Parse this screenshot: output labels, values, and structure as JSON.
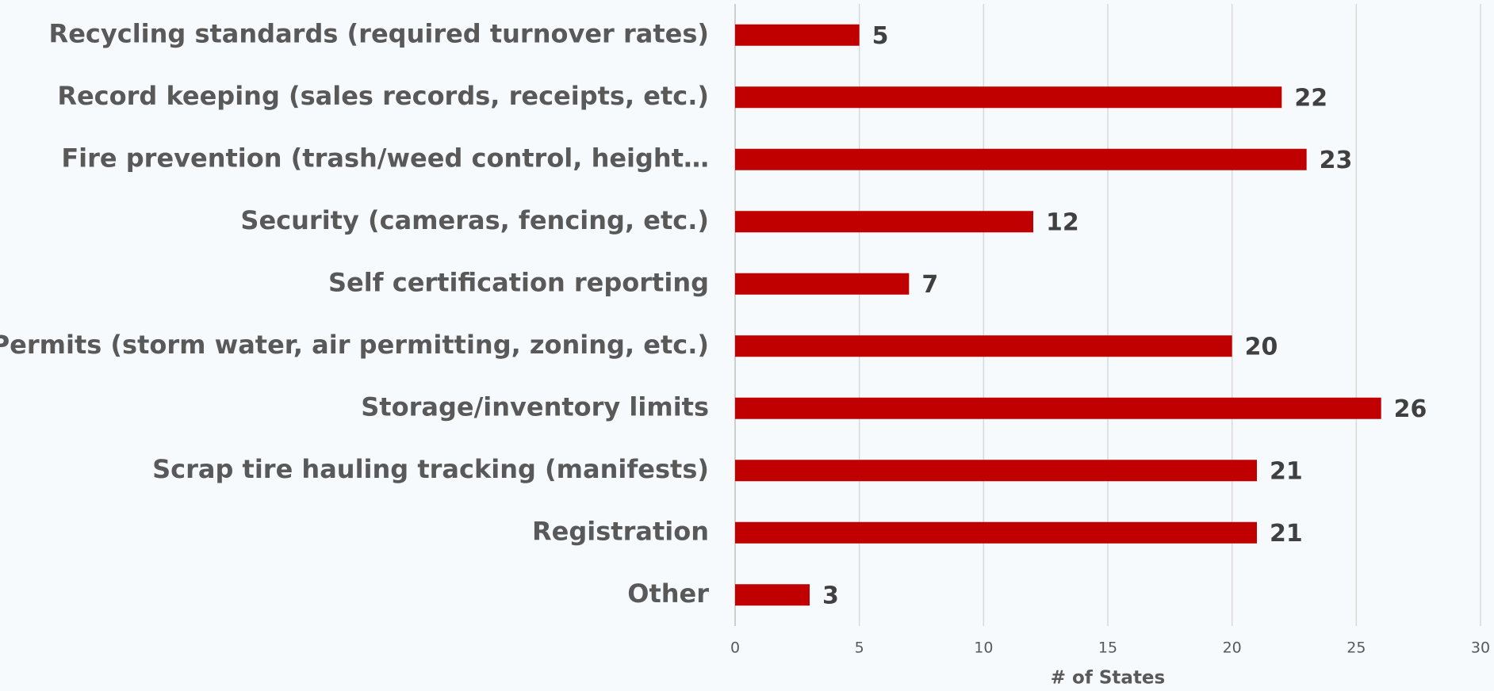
{
  "chart_data": {
    "type": "bar",
    "orientation": "horizontal",
    "categories": [
      "Recycling standards (required turnover rates)",
      "Record keeping (sales records, receipts, etc.)",
      "Fire prevention (trash/weed control, height…",
      "Security  (cameras, fencing, etc.)",
      "Self certification reporting",
      "Permits (storm water, air permitting, zoning, etc.)",
      "Storage/inventory limits",
      "Scrap tire hauling tracking (manifests)",
      "Registration",
      "Other"
    ],
    "values": [
      5,
      22,
      23,
      12,
      7,
      20,
      26,
      21,
      21,
      3
    ],
    "color": "#c00000",
    "xlabel": "# of States",
    "xlim": [
      0,
      30
    ],
    "xticks": [
      0,
      5,
      10,
      15,
      20,
      25,
      30
    ],
    "grid": true
  }
}
